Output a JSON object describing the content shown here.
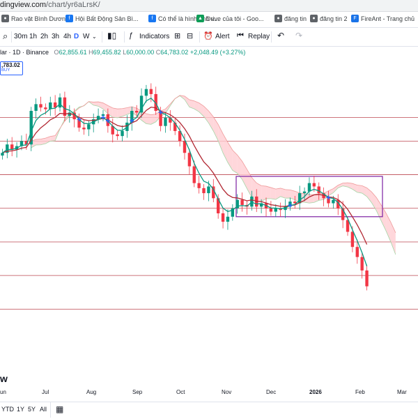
{
  "browser": {
    "url_host": "dingview.com",
    "url_path": "/chart/yr6aLrsK/"
  },
  "bookmarks": [
    {
      "label": "Rao vặt Bình Dương",
      "icon": "globe-icon",
      "color": "#5f6368"
    },
    {
      "label": "Hội Bất Động Sản Bì...",
      "icon": "facebook-icon",
      "color": "#1877f2"
    },
    {
      "label": "Có thể là hình ảnh v...",
      "icon": "facebook-icon",
      "color": "#1877f2"
    },
    {
      "label": "Drive của tôi - Goo...",
      "icon": "drive-icon",
      "color": "#0f9d58"
    },
    {
      "label": "đăng tin",
      "icon": "globe-icon",
      "color": "#5f6368"
    },
    {
      "label": "đăng tin 2",
      "icon": "globe-icon",
      "color": "#5f6368"
    },
    {
      "label": "FireAnt - Trang chủ",
      "icon": "fireant-icon",
      "color": "#1a73e8"
    }
  ],
  "toolbar": {
    "intervals": [
      "30m",
      "1h",
      "2h",
      "3h",
      "4h",
      "D",
      "W"
    ],
    "active_interval": "D",
    "indicators_label": "Indicators",
    "alert_label": "Alert",
    "replay_label": "Replay"
  },
  "legend": {
    "symbol": "lar · 1D · Binance",
    "open_label": "O",
    "open": "62,855.61",
    "high_label": "H",
    "high": "69,455.82",
    "low_label": "L",
    "low": "60,000.00",
    "close_label": "C",
    "close": "64,783.02",
    "change": "+2,048.49 (+3.27%)",
    "price_tag": ",783.02",
    "buy_label": "BUY"
  },
  "watermark": "w",
  "chart_data": {
    "type": "candlestick",
    "x_labels": [
      "un",
      "Jul",
      "Aug",
      "Sep",
      "Oct",
      "Nov",
      "Dec",
      "2026",
      "Feb",
      "Mar"
    ],
    "series": [
      {
        "name": "close",
        "values": [
          104500,
          107000,
          105500,
          106500,
          108000,
          107000,
          117000,
          119000,
          118000,
          117500,
          119500,
          118000,
          121000,
          115500,
          116500,
          114500,
          112000,
          111500,
          113000,
          114500,
          115500,
          116000,
          112500,
          110000,
          109500,
          111000,
          113500,
          117000,
          116500,
          121500,
          123500,
          122000,
          117000,
          112500,
          115000,
          113500,
          111000,
          108000,
          104500,
          100500,
          95500,
          94000,
          92500,
          94500,
          91000,
          86500,
          84000,
          85500,
          88000,
          90500,
          89000,
          88500,
          91500,
          88500,
          89500,
          88000,
          87000,
          88000,
          87500,
          88500,
          90000,
          89500,
          92500,
          93000,
          95500,
          94500,
          92500,
          91000,
          89500,
          90500,
          88000,
          84500,
          81000,
          76500,
          73500,
          69500,
          64783
        ]
      }
    ],
    "ema_fast_color": "#089981",
    "ema_slow_color": "#b22833",
    "cloud_bull_color": "#c8e6c9",
    "cloud_bear_color": "#ffcdd2",
    "horizontal_levels": [
      115000,
      108000,
      98000,
      88000,
      78000,
      68000,
      58000
    ],
    "highlight_box": {
      "x_start": "Nov 21",
      "x_end": "Jan 31",
      "y_top": 97500,
      "y_bottom": 85500,
      "color": "#7b1fa2"
    },
    "up_color": "#089981",
    "down_color": "#f23645"
  },
  "bottom": {
    "ranges": [
      "YTD",
      "1Y",
      "5Y",
      "All"
    ]
  }
}
